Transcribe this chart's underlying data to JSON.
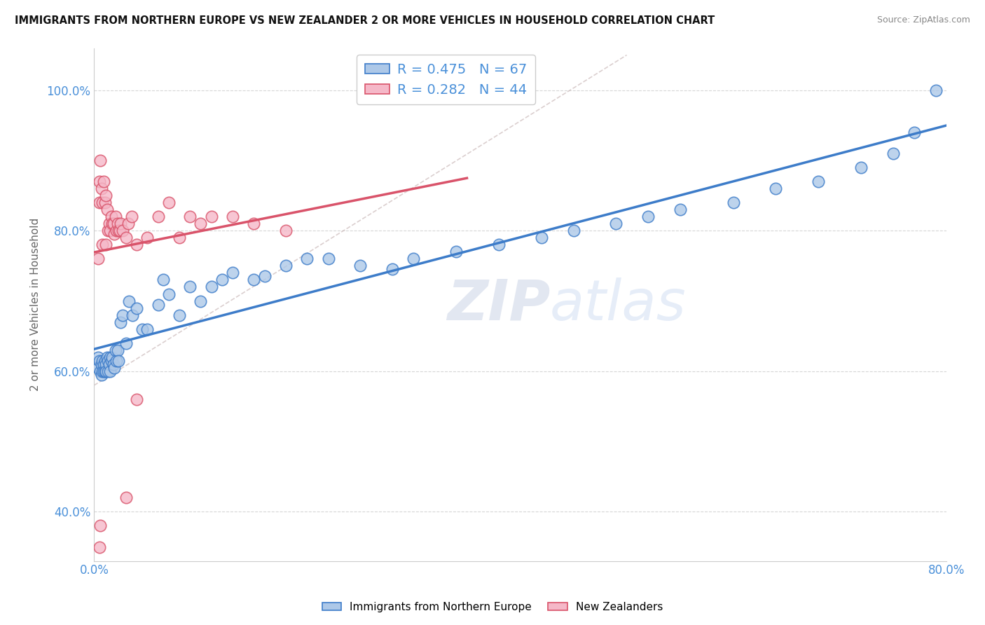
{
  "title": "IMMIGRANTS FROM NORTHERN EUROPE VS NEW ZEALANDER 2 OR MORE VEHICLES IN HOUSEHOLD CORRELATION CHART",
  "source": "Source: ZipAtlas.com",
  "ylabel": "2 or more Vehicles in Household",
  "R_blue": 0.475,
  "N_blue": 67,
  "R_pink": 0.282,
  "N_pink": 44,
  "blue_color": "#adc8e8",
  "pink_color": "#f5b8c8",
  "line_blue": "#3d7cc9",
  "line_pink": "#d9536a",
  "legend_blue_label": "Immigrants from Northern Europe",
  "legend_pink_label": "New Zealanders",
  "watermark_zip": "ZIP",
  "watermark_atlas": "atlas",
  "xlim": [
    0.0,
    0.8
  ],
  "ylim": [
    0.33,
    1.06
  ],
  "blue_x": [
    0.004,
    0.004,
    0.005,
    0.006,
    0.007,
    0.007,
    0.008,
    0.008,
    0.009,
    0.009,
    0.01,
    0.01,
    0.011,
    0.011,
    0.012,
    0.013,
    0.013,
    0.014,
    0.015,
    0.015,
    0.016,
    0.017,
    0.018,
    0.019,
    0.02,
    0.021,
    0.022,
    0.023,
    0.025,
    0.027,
    0.03,
    0.033,
    0.036,
    0.04,
    0.045,
    0.05,
    0.06,
    0.065,
    0.07,
    0.08,
    0.09,
    0.1,
    0.11,
    0.12,
    0.13,
    0.15,
    0.16,
    0.18,
    0.2,
    0.22,
    0.25,
    0.28,
    0.3,
    0.34,
    0.38,
    0.42,
    0.45,
    0.49,
    0.52,
    0.55,
    0.6,
    0.64,
    0.68,
    0.72,
    0.75,
    0.77,
    0.79
  ],
  "blue_y": [
    0.62,
    0.605,
    0.615,
    0.6,
    0.61,
    0.595,
    0.615,
    0.6,
    0.61,
    0.6,
    0.615,
    0.6,
    0.61,
    0.6,
    0.62,
    0.615,
    0.6,
    0.61,
    0.62,
    0.6,
    0.615,
    0.62,
    0.61,
    0.605,
    0.63,
    0.615,
    0.63,
    0.615,
    0.67,
    0.68,
    0.64,
    0.7,
    0.68,
    0.69,
    0.66,
    0.66,
    0.695,
    0.73,
    0.71,
    0.68,
    0.72,
    0.7,
    0.72,
    0.73,
    0.74,
    0.73,
    0.735,
    0.75,
    0.76,
    0.76,
    0.75,
    0.745,
    0.76,
    0.77,
    0.78,
    0.79,
    0.8,
    0.81,
    0.82,
    0.83,
    0.84,
    0.86,
    0.87,
    0.89,
    0.91,
    0.94,
    1.0
  ],
  "pink_x": [
    0.004,
    0.005,
    0.005,
    0.006,
    0.007,
    0.008,
    0.008,
    0.009,
    0.01,
    0.011,
    0.011,
    0.012,
    0.013,
    0.014,
    0.015,
    0.016,
    0.017,
    0.018,
    0.019,
    0.02,
    0.021,
    0.022,
    0.023,
    0.024,
    0.025,
    0.027,
    0.03,
    0.032,
    0.035,
    0.04,
    0.05,
    0.06,
    0.07,
    0.08,
    0.09,
    0.1,
    0.11,
    0.13,
    0.15,
    0.18,
    0.005,
    0.006,
    0.03,
    0.04
  ],
  "pink_y": [
    0.76,
    0.87,
    0.84,
    0.9,
    0.86,
    0.84,
    0.78,
    0.87,
    0.84,
    0.85,
    0.78,
    0.83,
    0.8,
    0.81,
    0.8,
    0.82,
    0.81,
    0.81,
    0.795,
    0.82,
    0.8,
    0.81,
    0.8,
    0.8,
    0.81,
    0.8,
    0.79,
    0.81,
    0.82,
    0.78,
    0.79,
    0.82,
    0.84,
    0.79,
    0.82,
    0.81,
    0.82,
    0.82,
    0.81,
    0.8,
    0.35,
    0.38,
    0.42,
    0.56
  ]
}
